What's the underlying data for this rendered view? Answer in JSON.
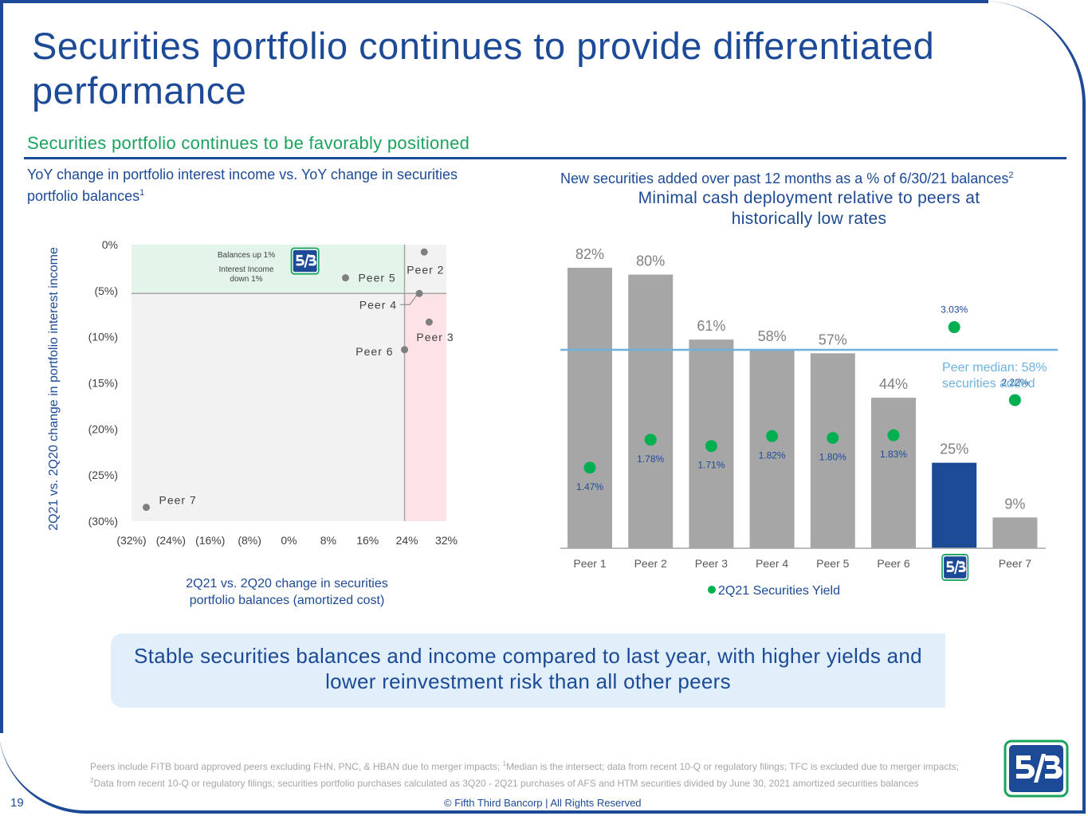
{
  "slide": {
    "title": "Securities portfolio continues to provide differentiated performance",
    "subtitle": "Securities portfolio continues to be favorably positioned",
    "callout": "Stable securities balances and income compared to last year, with higher yields and lower reinvestment risk than all other peers",
    "page_number": "19",
    "copyright": "© Fifth Third Bancorp | All Rights Reserved",
    "footnote_a": "Peers include FITB board approved peers excluding FHN, PNC, & HBAN due to merger impacts; ",
    "footnote_sup1": "1",
    "footnote_b": "Median is the intersect; data from recent 10-Q or regulatory filings; TFC is excluded due to merger impacts; ",
    "footnote_sup2": "2",
    "footnote_c": "Data from recent 10-Q or regulatory filings; securities portfolio purchases calculated as 3Q20 - 2Q21 purchases of AFS and HTM securities divided by June 30, 2021 amortized securities balances",
    "colors": {
      "brand_blue": "#1c4a97",
      "brand_green": "#1aa35e",
      "bar_gray": "#a6a6a6",
      "median_line": "#6cb3e0"
    }
  },
  "chart_data": [
    {
      "type": "scatter",
      "heading": "YoY change in portfolio interest income vs. YoY change in securities portfolio balances",
      "heading_sup": "1",
      "xlabel": "2Q21 vs. 2Q20 change in securities portfolio balances (amortized cost)",
      "ylabel": "2Q21 vs. 2Q20 change in portfolio interest income",
      "xlim": [
        -32,
        32
      ],
      "ylim": [
        -30,
        0
      ],
      "x_ticks": [
        "(32%)",
        "(24%)",
        "(16%)",
        "(8%)",
        "0%",
        "8%",
        "16%",
        "24%",
        "32%"
      ],
      "y_ticks": [
        "0%",
        "(5%)",
        "(10%)",
        "(15%)",
        "(20%)",
        "(25%)",
        "(30%)"
      ],
      "median_x": 23.5,
      "median_y": -5.3,
      "points": [
        {
          "name": "Peer 2",
          "x": 27.5,
          "y": -0.8
        },
        {
          "name": "Peer 5",
          "x": 11.5,
          "y": -3.6
        },
        {
          "name": "Peer 4",
          "x": 26.5,
          "y": -5.3
        },
        {
          "name": "Peer 3",
          "x": 28.5,
          "y": -8.4
        },
        {
          "name": "Peer 6",
          "x": 23.5,
          "y": -11.4
        },
        {
          "name": "Peer 7",
          "x": -29,
          "y": -28.5
        }
      ],
      "fitb_point": {
        "x": 1,
        "y": -1,
        "label_1": "Balances up 1%",
        "label_2": "Interest Income down 1%"
      }
    },
    {
      "type": "bar",
      "heading": "New securities added over past 12 months as a % of 6/30/21 balances",
      "heading_sup": "2",
      "subtitle": "Minimal cash deployment relative to peers at historically low rates",
      "categories": [
        "Peer 1",
        "Peer 2",
        "Peer 3",
        "Peer 4",
        "Peer 5",
        "Peer 6",
        "",
        "Peer 7"
      ],
      "highlight_index": 6,
      "series": [
        {
          "name": "",
          "values": [
            82,
            80,
            61,
            58,
            57,
            44,
            25,
            9
          ],
          "labels": [
            "82%",
            "80%",
            "61%",
            "58%",
            "57%",
            "44%",
            "25%",
            "9%"
          ]
        },
        {
          "name": "2Q21 Securities Yield",
          "values": [
            1.47,
            1.78,
            1.71,
            1.82,
            1.8,
            1.83,
            3.03,
            2.22
          ],
          "labels": [
            "1.47%",
            "1.78%",
            "1.71%",
            "1.82%",
            "1.80%",
            "1.83%",
            "3.03%",
            "2.22%"
          ]
        }
      ],
      "ylim": [
        0,
        82
      ],
      "yield_lim": [
        1.0,
        3.3
      ],
      "median": {
        "value": 58,
        "label_1": "Peer median: 58%",
        "label_2": "securities added"
      }
    }
  ]
}
